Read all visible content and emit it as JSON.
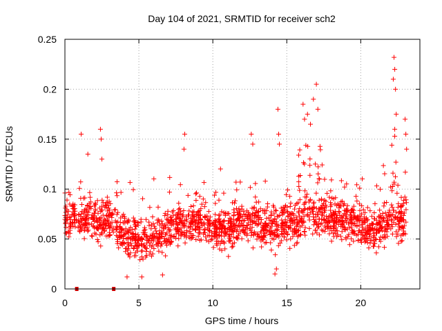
{
  "chart_data": {
    "type": "scatter",
    "title": "Day 104 of 2021, SRMTID for receiver sch2",
    "xlabel": "GPS time / hours",
    "ylabel": "SRMTID / TECUs",
    "xlim": [
      0,
      24
    ],
    "ylim": [
      0,
      0.25
    ],
    "xticks": [
      0,
      5,
      10,
      15,
      20
    ],
    "xtick_labels": [
      "0",
      "5",
      "10",
      "15",
      "20"
    ],
    "yticks": [
      0,
      0.05,
      0.1,
      0.15,
      0.2,
      0.25
    ],
    "ytick_labels": [
      "0",
      "0.05",
      "0.1",
      "0.15",
      "0.2",
      "0.25"
    ],
    "grid": true,
    "marker": "+",
    "color": "#ff0000",
    "baseline_mean_profile": [
      {
        "x": 0.0,
        "y": 0.075
      },
      {
        "x": 1.0,
        "y": 0.07
      },
      {
        "x": 2.0,
        "y": 0.068
      },
      {
        "x": 3.0,
        "y": 0.07
      },
      {
        "x": 4.0,
        "y": 0.055
      },
      {
        "x": 5.0,
        "y": 0.05
      },
      {
        "x": 6.0,
        "y": 0.052
      },
      {
        "x": 7.0,
        "y": 0.06
      },
      {
        "x": 8.0,
        "y": 0.065
      },
      {
        "x": 9.0,
        "y": 0.068
      },
      {
        "x": 10.0,
        "y": 0.062
      },
      {
        "x": 11.0,
        "y": 0.06
      },
      {
        "x": 12.0,
        "y": 0.07
      },
      {
        "x": 13.0,
        "y": 0.065
      },
      {
        "x": 14.0,
        "y": 0.06
      },
      {
        "x": 15.0,
        "y": 0.068
      },
      {
        "x": 16.0,
        "y": 0.07
      },
      {
        "x": 17.0,
        "y": 0.075
      },
      {
        "x": 18.0,
        "y": 0.07
      },
      {
        "x": 19.0,
        "y": 0.068
      },
      {
        "x": 20.0,
        "y": 0.062
      },
      {
        "x": 21.0,
        "y": 0.058
      },
      {
        "x": 22.0,
        "y": 0.07
      },
      {
        "x": 23.0,
        "y": 0.065
      }
    ],
    "notable_points": [
      {
        "x": 1.1,
        "y": 0.155
      },
      {
        "x": 1.55,
        "y": 0.135
      },
      {
        "x": 2.4,
        "y": 0.16
      },
      {
        "x": 2.45,
        "y": 0.15
      },
      {
        "x": 2.5,
        "y": 0.13
      },
      {
        "x": 8.1,
        "y": 0.155
      },
      {
        "x": 8.05,
        "y": 0.14
      },
      {
        "x": 12.6,
        "y": 0.155
      },
      {
        "x": 12.7,
        "y": 0.145
      },
      {
        "x": 14.4,
        "y": 0.18
      },
      {
        "x": 14.45,
        "y": 0.155
      },
      {
        "x": 14.5,
        "y": 0.145
      },
      {
        "x": 16.1,
        "y": 0.185
      },
      {
        "x": 16.2,
        "y": 0.17
      },
      {
        "x": 16.4,
        "y": 0.175
      },
      {
        "x": 16.6,
        "y": 0.165
      },
      {
        "x": 16.8,
        "y": 0.19
      },
      {
        "x": 17.0,
        "y": 0.205
      },
      {
        "x": 17.1,
        "y": 0.18
      },
      {
        "x": 22.25,
        "y": 0.232
      },
      {
        "x": 22.3,
        "y": 0.22
      },
      {
        "x": 22.2,
        "y": 0.21
      },
      {
        "x": 22.35,
        "y": 0.2
      },
      {
        "x": 22.4,
        "y": 0.175
      },
      {
        "x": 22.3,
        "y": 0.16
      },
      {
        "x": 23.0,
        "y": 0.17
      },
      {
        "x": 23.05,
        "y": 0.155
      },
      {
        "x": 23.1,
        "y": 0.14
      },
      {
        "x": 14.2,
        "y": 0.015
      },
      {
        "x": 14.3,
        "y": 0.02
      },
      {
        "x": 5.2,
        "y": 0.012
      },
      {
        "x": 4.2,
        "y": 0.012
      },
      {
        "x": 6.6,
        "y": 0.014
      }
    ],
    "data_gaps": [
      {
        "x_start": 0.7,
        "x_end": 0.9
      },
      {
        "x_start": 3.2,
        "x_end": 3.4
      }
    ]
  }
}
